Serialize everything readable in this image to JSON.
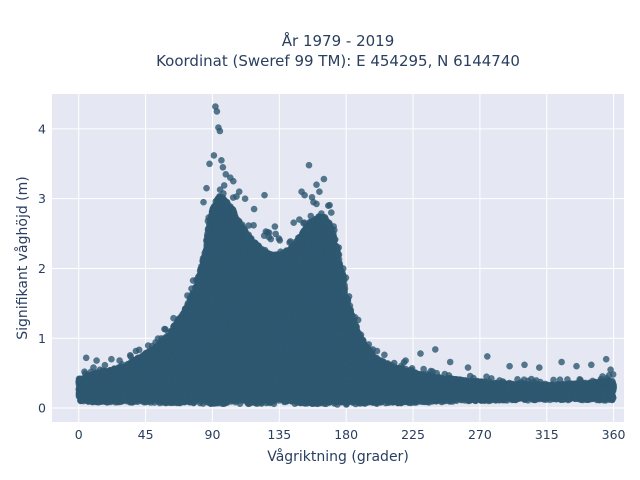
{
  "chart_data": {
    "type": "scatter",
    "title_line1": "År 1979 - 2019",
    "title_line2": "Koordinat (Sweref 99 TM): E 454295, N 6144740",
    "xlabel": "Vågriktning (grader)",
    "ylabel": "Signifikant våghöjd (m)",
    "xlim": [
      -18,
      367
    ],
    "ylim": [
      -0.2,
      4.5
    ],
    "xticks": [
      0,
      45,
      90,
      135,
      180,
      225,
      270,
      315,
      360
    ],
    "yticks": [
      0,
      1,
      2,
      3,
      4
    ],
    "grid": true,
    "marker_color": "#2e5770",
    "plot_background": "#e5e8f2",
    "envelope": {
      "x": [
        0,
        10,
        20,
        30,
        40,
        50,
        60,
        70,
        80,
        85,
        90,
        95,
        100,
        105,
        110,
        115,
        120,
        125,
        130,
        135,
        140,
        145,
        150,
        155,
        160,
        165,
        170,
        175,
        180,
        185,
        190,
        195,
        200,
        210,
        220,
        230,
        240,
        250,
        260,
        270,
        280,
        290,
        300,
        310,
        320,
        330,
        340,
        350,
        360
      ],
      "upper": [
        0.42,
        0.5,
        0.55,
        0.6,
        0.72,
        0.85,
        1.05,
        1.35,
        1.8,
        2.25,
        2.9,
        3.05,
        2.95,
        2.8,
        2.6,
        2.45,
        2.35,
        2.25,
        2.2,
        2.2,
        2.25,
        2.35,
        2.5,
        2.65,
        2.75,
        2.75,
        2.6,
        2.2,
        1.65,
        1.25,
        1.0,
        0.85,
        0.72,
        0.62,
        0.55,
        0.5,
        0.45,
        0.42,
        0.4,
        0.38,
        0.36,
        0.35,
        0.34,
        0.34,
        0.34,
        0.35,
        0.36,
        0.38,
        0.4
      ],
      "lower": [
        0.1,
        0.08,
        0.08,
        0.08,
        0.08,
        0.07,
        0.07,
        0.06,
        0.06,
        0.06,
        0.06,
        0.06,
        0.06,
        0.06,
        0.06,
        0.06,
        0.06,
        0.06,
        0.06,
        0.06,
        0.06,
        0.06,
        0.06,
        0.06,
        0.06,
        0.06,
        0.06,
        0.05,
        0.05,
        0.05,
        0.06,
        0.06,
        0.06,
        0.07,
        0.07,
        0.08,
        0.08,
        0.09,
        0.1,
        0.1,
        0.1,
        0.11,
        0.11,
        0.11,
        0.11,
        0.11,
        0.11,
        0.11,
        0.11
      ]
    },
    "outliers": {
      "x": [
        92,
        93,
        94,
        95,
        91,
        96,
        97,
        99,
        102,
        104,
        108,
        112,
        118,
        125,
        128,
        132,
        150,
        152,
        155,
        157,
        158,
        160,
        162,
        165,
        168,
        170,
        172,
        175,
        178,
        182,
        186,
        190,
        5,
        12,
        22,
        35,
        240,
        250,
        262,
        275,
        290,
        300,
        310,
        325,
        335,
        345,
        355,
        358,
        230,
        220,
        88,
        86,
        84
      ],
      "y": [
        4.32,
        4.25,
        4.02,
        3.97,
        3.62,
        3.55,
        3.45,
        3.35,
        3.3,
        3.25,
        3.1,
        3.0,
        2.85,
        3.05,
        2.45,
        2.6,
        3.1,
        3.05,
        3.48,
        3.02,
        2.95,
        3.2,
        3.1,
        3.28,
        2.9,
        2.8,
        2.55,
        2.3,
        2.0,
        1.6,
        1.3,
        1.05,
        0.72,
        0.68,
        0.7,
        0.74,
        0.84,
        0.66,
        0.58,
        0.74,
        0.6,
        0.62,
        0.58,
        0.66,
        0.6,
        0.62,
        0.7,
        0.55,
        0.78,
        0.68,
        3.5,
        3.15,
        2.95
      ]
    }
  }
}
